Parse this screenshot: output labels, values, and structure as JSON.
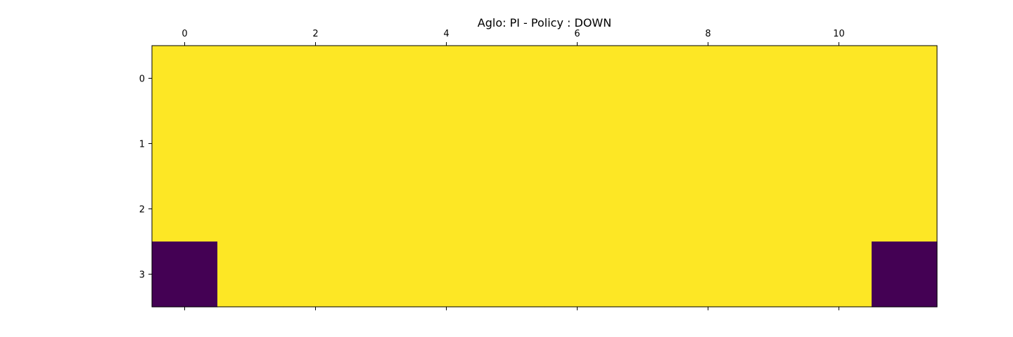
{
  "chart_data": {
    "type": "heatmap",
    "title": "Aglo: PI - Policy : DOWN",
    "xlabel": "",
    "ylabel": "",
    "x_axis_position": "top",
    "y_axis_direction": "inverted",
    "columns": [
      0,
      1,
      2,
      3,
      4,
      5,
      6,
      7,
      8,
      9,
      10,
      11
    ],
    "rows": [
      0,
      1,
      2,
      3
    ],
    "x_ticks": [
      0,
      2,
      4,
      6,
      8,
      10
    ],
    "y_ticks": [
      0,
      1,
      2,
      3
    ],
    "values": [
      [
        1,
        1,
        1,
        1,
        1,
        1,
        1,
        1,
        1,
        1,
        1,
        1
      ],
      [
        1,
        1,
        1,
        1,
        1,
        1,
        1,
        1,
        1,
        1,
        1,
        1
      ],
      [
        1,
        1,
        1,
        1,
        1,
        1,
        1,
        1,
        1,
        1,
        1,
        1
      ],
      [
        0,
        1,
        1,
        1,
        1,
        1,
        1,
        1,
        1,
        1,
        1,
        0
      ]
    ],
    "colormap": "viridis",
    "color_low": "#440154",
    "color_high": "#fde725",
    "grid": false,
    "legend": "none"
  }
}
